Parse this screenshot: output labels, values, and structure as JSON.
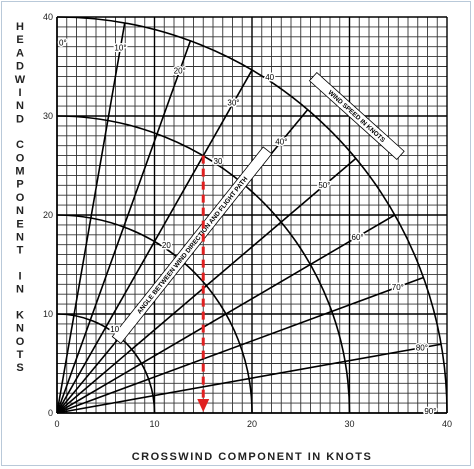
{
  "chart_data": {
    "type": "line",
    "xlabel": "CROSSWIND COMPONENT IN KNOTS",
    "ylabel": "HEADWIND COMPONENT IN KNOTS",
    "xlim": [
      0,
      40
    ],
    "ylim": [
      0,
      40
    ],
    "x_ticks": [
      "0",
      "10",
      "20",
      "30",
      "40"
    ],
    "y_ticks": [
      "0",
      "10",
      "20",
      "30",
      "40"
    ],
    "grid": true,
    "angle_lines": [
      {
        "angle": 0,
        "label": "0°"
      },
      {
        "angle": 10,
        "label": "10°"
      },
      {
        "angle": 20,
        "label": "20°"
      },
      {
        "angle": 30,
        "label": "30°"
      },
      {
        "angle": 40,
        "label": "40°"
      },
      {
        "angle": 50,
        "label": "50°"
      },
      {
        "angle": 60,
        "label": "60°"
      },
      {
        "angle": 70,
        "label": "70°"
      },
      {
        "angle": 80,
        "label": "80°"
      },
      {
        "angle": 90,
        "label": "90°"
      }
    ],
    "wind_speed_arcs": [
      {
        "speed": 10,
        "label": "10"
      },
      {
        "speed": 20,
        "label": "20"
      },
      {
        "speed": 30,
        "label": "30"
      },
      {
        "speed": 40,
        "label": "40"
      }
    ],
    "angle_banner": "ANGLE BETWEEN WIND DIRECTION AND FLIGHT PATH",
    "speed_banner": "WIND SPEED IN KNOTS",
    "example": {
      "wind_speed": 30,
      "angle": 30,
      "crosswind": 15,
      "headwind": 26,
      "color": "#e02020"
    }
  }
}
